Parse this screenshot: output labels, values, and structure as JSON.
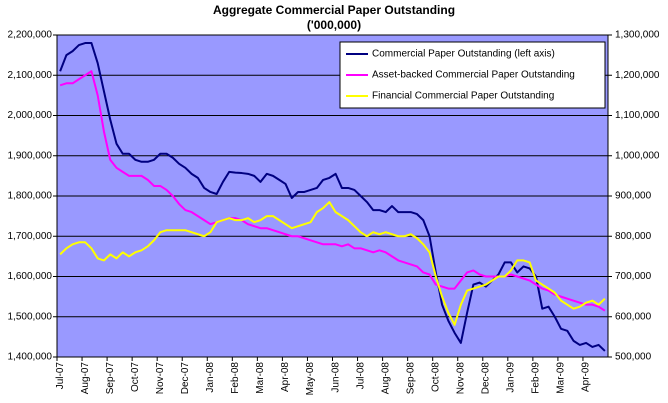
{
  "chart_data": {
    "type": "line",
    "title": "Aggregate Commercial Paper Outstanding",
    "subtitle": "('000,000)",
    "categories": [
      "Jul-07",
      null,
      null,
      null,
      "Aug-07",
      null,
      null,
      null,
      "Sep-07",
      null,
      null,
      null,
      "Oct-07",
      null,
      null,
      null,
      "Nov-07",
      null,
      null,
      null,
      "Dec-07",
      null,
      null,
      null,
      "Jan-08",
      null,
      null,
      null,
      "Feb-08",
      null,
      null,
      null,
      "Mar-08",
      null,
      null,
      null,
      "Apr-08",
      null,
      null,
      null,
      "May-08",
      null,
      null,
      null,
      "Jun-08",
      null,
      null,
      null,
      "Jul-08",
      null,
      null,
      null,
      "Aug-08",
      null,
      null,
      null,
      "Sep-08",
      null,
      null,
      null,
      "Oct-08",
      null,
      null,
      null,
      "Nov-08",
      null,
      null,
      null,
      "Dec-08",
      null,
      null,
      null,
      "Jan-09",
      null,
      null,
      null,
      "Feb-09",
      null,
      null,
      null,
      "Mar-09",
      null,
      null,
      null,
      "Apr-09",
      null,
      null,
      null
    ],
    "series": [
      {
        "name": "Commercial Paper Outstanding (left axis)",
        "color": "#000080",
        "axis": "y",
        "values": [
          2110000,
          2150000,
          2160000,
          2175000,
          2180000,
          2180000,
          2130000,
          2060000,
          1990000,
          1930000,
          1905000,
          1905000,
          1890000,
          1885000,
          1885000,
          1890000,
          1905000,
          1905000,
          1895000,
          1880000,
          1870000,
          1855000,
          1845000,
          1820000,
          1810000,
          1805000,
          1835000,
          1860000,
          1858000,
          1857000,
          1855000,
          1850000,
          1835000,
          1855000,
          1850000,
          1840000,
          1830000,
          1795000,
          1810000,
          1810000,
          1815000,
          1820000,
          1840000,
          1845000,
          1855000,
          1820000,
          1820000,
          1815000,
          1800000,
          1785000,
          1765000,
          1765000,
          1760000,
          1775000,
          1760000,
          1760000,
          1760000,
          1755000,
          1740000,
          1700000,
          1610000,
          1530000,
          1490000,
          1460000,
          1435000,
          1510000,
          1580000,
          1585000,
          1575000,
          1590000,
          1605000,
          1635000,
          1635000,
          1610000,
          1625000,
          1620000,
          1600000,
          1520000,
          1525000,
          1500000,
          1470000,
          1465000,
          1440000,
          1430000,
          1435000,
          1425000,
          1430000,
          1415000
        ]
      },
      {
        "name": "Asset-backed Commercial Paper Outstanding",
        "color": "#FF00FF",
        "axis": "y2",
        "values": [
          1175000,
          1180000,
          1180000,
          1190000,
          1200000,
          1210000,
          1150000,
          1060000,
          990000,
          970000,
          960000,
          950000,
          950000,
          950000,
          940000,
          925000,
          925000,
          915000,
          900000,
          880000,
          865000,
          860000,
          850000,
          840000,
          830000,
          835000,
          840000,
          845000,
          845000,
          840000,
          830000,
          825000,
          820000,
          820000,
          815000,
          810000,
          805000,
          800000,
          800000,
          795000,
          790000,
          785000,
          780000,
          780000,
          780000,
          775000,
          780000,
          770000,
          770000,
          765000,
          760000,
          765000,
          760000,
          750000,
          740000,
          735000,
          730000,
          725000,
          710000,
          705000,
          680000,
          675000,
          670000,
          670000,
          690000,
          710000,
          715000,
          705000,
          700000,
          700000,
          700000,
          700000,
          705000,
          700000,
          695000,
          690000,
          680000,
          670000,
          665000,
          655000,
          650000,
          645000,
          640000,
          635000,
          630000,
          630000,
          625000,
          615000
        ]
      },
      {
        "name": "Financial Commercial Paper Outstanding",
        "color": "#FFFF00",
        "axis": "y2",
        "values": [
          755000,
          770000,
          780000,
          785000,
          785000,
          770000,
          745000,
          740000,
          755000,
          745000,
          760000,
          750000,
          760000,
          765000,
          775000,
          790000,
          810000,
          815000,
          815000,
          815000,
          815000,
          810000,
          805000,
          800000,
          810000,
          835000,
          840000,
          845000,
          840000,
          840000,
          845000,
          835000,
          840000,
          850000,
          850000,
          840000,
          830000,
          820000,
          825000,
          830000,
          835000,
          860000,
          870000,
          885000,
          860000,
          850000,
          840000,
          825000,
          810000,
          800000,
          810000,
          805000,
          810000,
          805000,
          800000,
          800000,
          805000,
          795000,
          780000,
          760000,
          700000,
          650000,
          610000,
          580000,
          630000,
          665000,
          670000,
          675000,
          680000,
          690000,
          700000,
          700000,
          715000,
          740000,
          740000,
          735000,
          690000,
          680000,
          670000,
          660000,
          640000,
          630000,
          620000,
          625000,
          635000,
          640000,
          630000,
          645000
        ]
      }
    ],
    "ylim": [
      1400000,
      2200000
    ],
    "yticks": [
      {
        "value": 1400000,
        "label": "1,400,000"
      },
      {
        "value": 1500000,
        "label": "1,500,000"
      },
      {
        "value": 1600000,
        "label": "1,600,000"
      },
      {
        "value": 1700000,
        "label": "1,700,000"
      },
      {
        "value": 1800000,
        "label": "1,800,000"
      },
      {
        "value": 1900000,
        "label": "1,900,000"
      },
      {
        "value": 2000000,
        "label": "2,000,000"
      },
      {
        "value": 2100000,
        "label": "2,100,000"
      },
      {
        "value": 2200000,
        "label": "2,200,000"
      }
    ],
    "y2lim": [
      500000,
      1300000
    ],
    "y2ticks": [
      {
        "value": 500000,
        "label": "500,000"
      },
      {
        "value": 600000,
        "label": "600,000"
      },
      {
        "value": 700000,
        "label": "700,000"
      },
      {
        "value": 800000,
        "label": "800,000"
      },
      {
        "value": 900000,
        "label": "900,000"
      },
      {
        "value": 1000000,
        "label": "1,000,000"
      },
      {
        "value": 1100000,
        "label": "1,100,000"
      },
      {
        "value": 1200000,
        "label": "1,200,000"
      },
      {
        "value": 1300000,
        "label": "1,300,000"
      }
    ],
    "grid": true,
    "legend": "top-right",
    "plot_background": "#9999FF"
  }
}
